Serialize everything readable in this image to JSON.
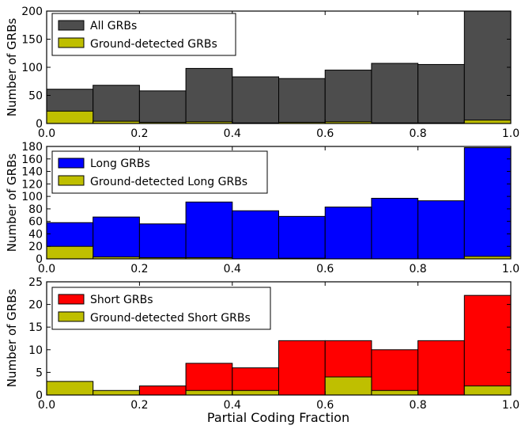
{
  "chart_data": [
    {
      "type": "bar",
      "title": "",
      "xlabel": "",
      "ylabel": "Number of GRBs",
      "xlim": [
        0,
        1
      ],
      "ylim": [
        0,
        200
      ],
      "xticks": [
        "0.0",
        "0.2",
        "0.4",
        "0.6",
        "0.8",
        "1.0"
      ],
      "yticks": [
        "0",
        "50",
        "100",
        "150",
        "200"
      ],
      "bin_edges": [
        0.0,
        0.1,
        0.2,
        0.3,
        0.4,
        0.5,
        0.6,
        0.7,
        0.8,
        0.9,
        1.0
      ],
      "legend_position": "upper-left",
      "series": [
        {
          "name": "All GRBs",
          "color": "#4d4d4d",
          "values": [
            61,
            68,
            58,
            98,
            83,
            80,
            95,
            107,
            105,
            200
          ]
        },
        {
          "name": "Ground-detected GRBs",
          "color": "#bfbf00",
          "values": [
            22,
            4,
            2,
            3,
            1,
            2,
            3,
            1,
            1,
            6
          ]
        }
      ]
    },
    {
      "type": "bar",
      "title": "",
      "xlabel": "",
      "ylabel": "Number of GRBs",
      "xlim": [
        0,
        1
      ],
      "ylim": [
        0,
        180
      ],
      "xticks": [
        "0.0",
        "0.2",
        "0.4",
        "0.6",
        "0.8",
        "1.0"
      ],
      "yticks": [
        "0",
        "20",
        "40",
        "60",
        "80",
        "100",
        "120",
        "140",
        "160",
        "180"
      ],
      "bin_edges": [
        0.0,
        0.1,
        0.2,
        0.3,
        0.4,
        0.5,
        0.6,
        0.7,
        0.8,
        0.9,
        1.0
      ],
      "legend_position": "upper-left",
      "series": [
        {
          "name": "Long GRBs",
          "color": "#0000ff",
          "values": [
            58,
            67,
            56,
            91,
            77,
            68,
            83,
            97,
            93,
            178
          ]
        },
        {
          "name": "Ground-detected Long GRBs",
          "color": "#bfbf00",
          "values": [
            20,
            3,
            2,
            2,
            0,
            1,
            0,
            0,
            0,
            4
          ]
        }
      ]
    },
    {
      "type": "bar",
      "title": "",
      "xlabel": "Partial Coding Fraction",
      "ylabel": "Number of GRBs",
      "xlim": [
        0,
        1
      ],
      "ylim": [
        0,
        25
      ],
      "xticks": [
        "0.0",
        "0.2",
        "0.4",
        "0.6",
        "0.8",
        "1.0"
      ],
      "yticks": [
        "0",
        "5",
        "10",
        "15",
        "20",
        "25"
      ],
      "bin_edges": [
        0.0,
        0.1,
        0.2,
        0.3,
        0.4,
        0.5,
        0.6,
        0.7,
        0.8,
        0.9,
        1.0
      ],
      "legend_position": "upper-left",
      "series": [
        {
          "name": "Short GRBs",
          "color": "#ff0000",
          "values": [
            0,
            0,
            2,
            7,
            6,
            12,
            12,
            10,
            12,
            22
          ]
        },
        {
          "name": "Ground-detected Short GRBs",
          "color": "#bfbf00",
          "values": [
            3,
            1,
            0,
            1,
            1,
            0,
            4,
            1,
            0,
            2
          ]
        }
      ]
    }
  ]
}
